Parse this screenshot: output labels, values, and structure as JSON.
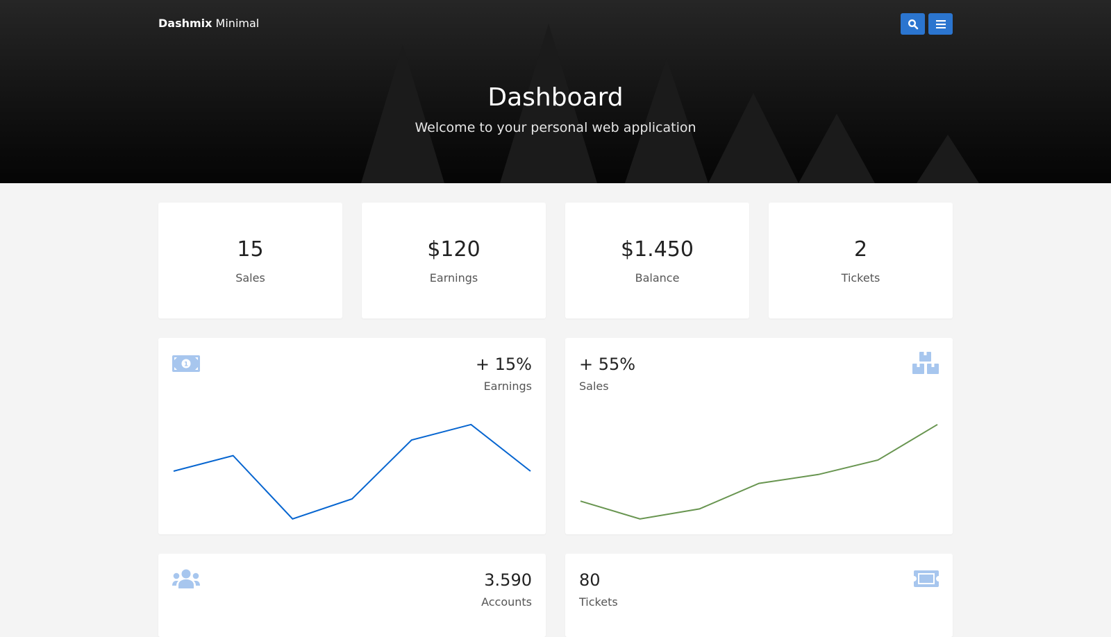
{
  "header": {
    "brand_bold": "Dashmix",
    "brand_rest": " Minimal",
    "title": "Dashboard",
    "subtitle": "Welcome to your personal web application",
    "buttons": [
      {
        "icon": "search-icon"
      },
      {
        "icon": "menu-icon"
      }
    ]
  },
  "stats": [
    {
      "value": "15",
      "label": "Sales"
    },
    {
      "value": "$120",
      "label": "Earnings"
    },
    {
      "value": "$1.450",
      "label": "Balance"
    },
    {
      "value": "2",
      "label": "Tickets"
    }
  ],
  "widgets": {
    "earnings": {
      "value": "+ 15%",
      "label": "Earnings",
      "icon": "money-bill-icon"
    },
    "sales": {
      "value": "+ 55%",
      "label": "Sales",
      "icon": "boxes-icon"
    },
    "accounts": {
      "value": "3.590",
      "label": "Accounts",
      "icon": "users-icon"
    },
    "tickets": {
      "value": "80",
      "label": "Tickets",
      "icon": "ticket-icon"
    }
  },
  "colors": {
    "accent": "#2b75cf",
    "earnings_line": "#0665d0",
    "sales_line": "#689550",
    "icon": "#a7c6ee"
  },
  "chart_data": [
    {
      "type": "line",
      "x": [
        1,
        2,
        3,
        4,
        5,
        6,
        7
      ],
      "values": [
        55,
        69,
        12,
        30,
        83,
        97,
        55
      ],
      "ylim": [
        0,
        110
      ],
      "grid": false,
      "color": "#0665d0"
    },
    {
      "type": "line",
      "x": [
        1,
        2,
        3,
        4,
        5,
        6,
        7
      ],
      "values": [
        28,
        12,
        21,
        44,
        52,
        65,
        97
      ],
      "ylim": [
        0,
        110
      ],
      "grid": false,
      "color": "#689550"
    }
  ]
}
